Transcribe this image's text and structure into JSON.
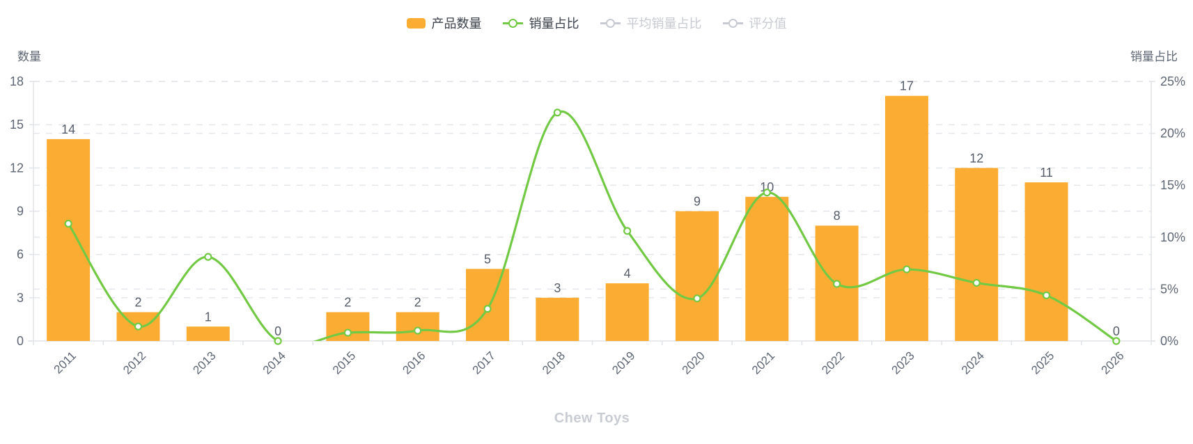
{
  "chart": {
    "title": "Chew Toys",
    "left_axis_name": "数量",
    "right_axis_name": "销量占比"
  },
  "legend": {
    "items": [
      {
        "id": "product-count",
        "label": "产品数量",
        "type": "bar",
        "active": true
      },
      {
        "id": "sales-share",
        "label": "销量占比",
        "type": "line",
        "active": true
      },
      {
        "id": "avg-sales-share",
        "label": "平均销量占比",
        "type": "line",
        "active": false
      },
      {
        "id": "rating-value",
        "label": "评分值",
        "type": "line",
        "active": false
      }
    ]
  },
  "colors": {
    "bar": "#fbad33",
    "line": "#72c944",
    "inactive": "#c7cad0",
    "legend_text_active": "#3a414b",
    "axis_text": "#5e6673",
    "label_text": "#565d68",
    "grid_line": "#e2e5ea",
    "axis_line": "#e0e3e8",
    "marker_fill": "#ffffff",
    "title_text": "#c9ccd3"
  },
  "chart_data": {
    "type": "bar+line combo",
    "categories": [
      "2011",
      "2012",
      "2013",
      "2014",
      "2015",
      "2016",
      "2017",
      "2018",
      "2019",
      "2020",
      "2021",
      "2022",
      "2023",
      "2024",
      "2025",
      "2026"
    ],
    "series": [
      {
        "name": "产品数量",
        "type": "bar",
        "axis": "left",
        "values": [
          14,
          2,
          1,
          0,
          2,
          2,
          5,
          3,
          4,
          9,
          10,
          8,
          17,
          12,
          11,
          0
        ],
        "labels": [
          "14",
          "2",
          "1",
          "0",
          "2",
          "2",
          "5",
          "3",
          "4",
          "9",
          "10",
          "8",
          "17",
          "12",
          "11",
          "0"
        ]
      },
      {
        "name": "销量占比",
        "type": "line",
        "axis": "right",
        "unit": "%",
        "smooth": true,
        "values": [
          11.3,
          1.4,
          8.1,
          0,
          0.8,
          1.0,
          3.1,
          22.0,
          10.6,
          4.1,
          14.3,
          5.5,
          6.9,
          5.6,
          4.4,
          0
        ]
      }
    ],
    "left_axis": {
      "name": "数量",
      "min": 0,
      "max": 18,
      "interval": 3,
      "tick_labels": [
        "0",
        "3",
        "6",
        "9",
        "12",
        "15",
        "18"
      ]
    },
    "right_axis": {
      "name": "销量占比",
      "min": 0,
      "max": 25,
      "interval": 5,
      "tick_labels": [
        "0%",
        "5%",
        "10%",
        "15%",
        "20%",
        "25%"
      ]
    },
    "grid": {
      "horizontal_dashed": true,
      "vertical": false
    },
    "legend_position": "top-center",
    "title": "Chew Toys"
  }
}
